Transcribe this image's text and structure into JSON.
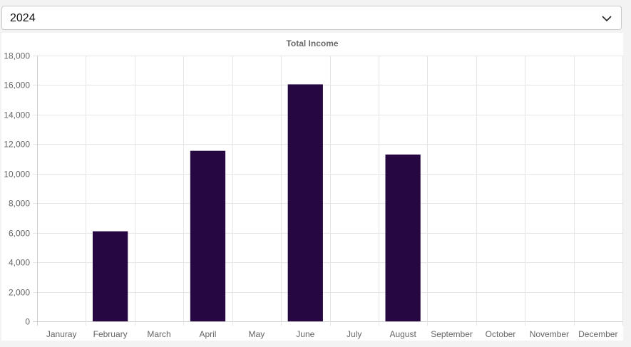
{
  "year_select": {
    "selected": "2024",
    "icon": "chevron-down-icon"
  },
  "chart_data": {
    "type": "bar",
    "title": "Total Income",
    "xlabel": "",
    "ylabel": "",
    "categories": [
      "Januray",
      "February",
      "March",
      "April",
      "May",
      "June",
      "July",
      "August",
      "September",
      "October",
      "November",
      "December"
    ],
    "values": [
      0,
      6100,
      0,
      11550,
      0,
      16050,
      0,
      11300,
      0,
      0,
      0,
      0
    ],
    "ylim": [
      0,
      18000
    ],
    "yticks": [
      0,
      2000,
      4000,
      6000,
      8000,
      10000,
      12000,
      14000,
      16000,
      18000
    ],
    "ytick_labels": [
      "0",
      "2,000",
      "4,000",
      "6,000",
      "8,000",
      "10,000",
      "12,000",
      "14,000",
      "16,000",
      "18,000"
    ],
    "grid": true,
    "legend": "none",
    "bar_color": "#260742",
    "grid_color": "#e6e6e6",
    "text_color": "#666666"
  }
}
